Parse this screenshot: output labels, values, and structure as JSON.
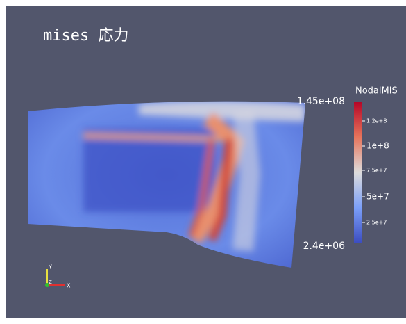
{
  "title": "mises 応力",
  "colorbar": {
    "title": "NodalMIS",
    "max_label": "1.45e+08",
    "min_label": "2.4e+06",
    "tick_labels": [
      "1.2e+8",
      "1e+8",
      "7.5e+7",
      "5e+7",
      "2.5e+7"
    ]
  },
  "axes_triad": {
    "labels": [
      "Y",
      "Z",
      "X"
    ]
  }
}
